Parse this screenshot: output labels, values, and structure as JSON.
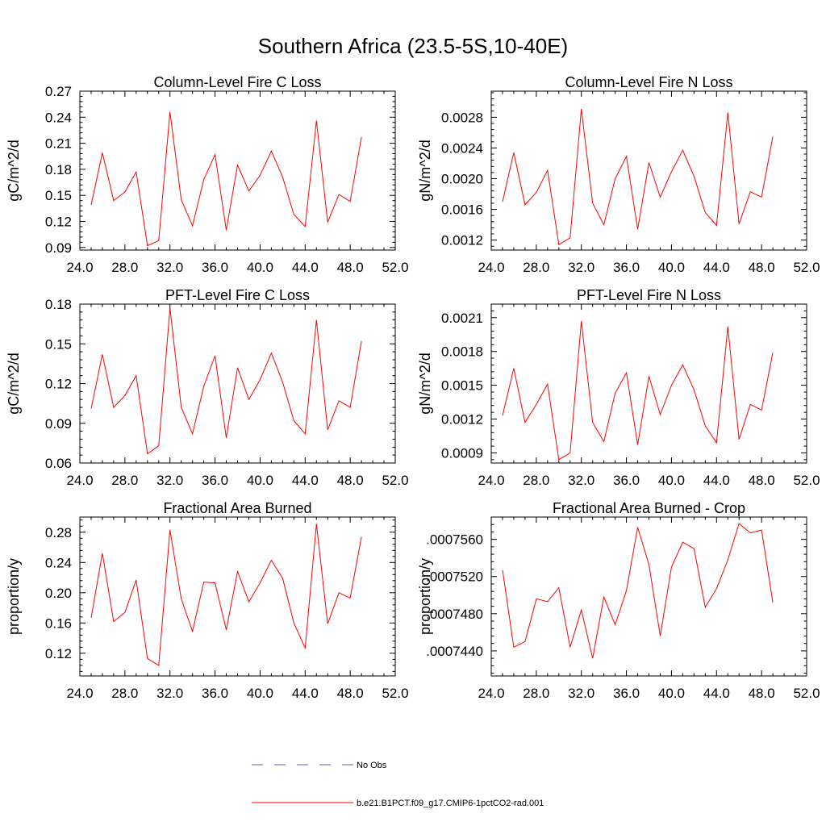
{
  "figure": {
    "title": "Southern Africa (23.5-5S,10-40E)"
  },
  "legend": [
    {
      "label": "No Obs",
      "color": "#5a5ab4",
      "dash": "dashed"
    },
    {
      "label": "b.e21.B1PCT.f09_g17.CMIP6-1pctCO2-rad.001",
      "color": "#ff0000",
      "dash": "solid"
    }
  ],
  "chart_data": [
    {
      "type": "line",
      "title": "Column-Level Fire C Loss",
      "xlabel": "",
      "ylabel": "gC/m^2/d",
      "xlim": [
        24,
        52
      ],
      "ylim": [
        0.087,
        0.27
      ],
      "xticks": [
        "24.0",
        "28.0",
        "32.0",
        "36.0",
        "40.0",
        "44.0",
        "48.0",
        "52.0"
      ],
      "yticks": [
        "0.09",
        "0.12",
        "0.15",
        "0.18",
        "0.21",
        "0.24",
        "0.27"
      ],
      "x": [
        25,
        26,
        27,
        28,
        29,
        30,
        31,
        32,
        33,
        34,
        35,
        36,
        37,
        38,
        39,
        40,
        41,
        42,
        43,
        44,
        45,
        46,
        47,
        48,
        49
      ],
      "series": [
        {
          "name": "b.e21.B1PCT.f09_g17.CMIP6-1pctCO2-rad.001",
          "color": "#ff0000",
          "values": [
            0.139,
            0.199,
            0.144,
            0.154,
            0.177,
            0.092,
            0.098,
            0.246,
            0.145,
            0.115,
            0.168,
            0.197,
            0.11,
            0.185,
            0.155,
            0.173,
            0.201,
            0.171,
            0.128,
            0.114,
            0.236,
            0.119,
            0.151,
            0.143,
            0.217
          ]
        }
      ]
    },
    {
      "type": "line",
      "title": "Column-Level Fire N Loss",
      "xlabel": "",
      "ylabel": "gN/m^2/d",
      "xlim": [
        24,
        52
      ],
      "ylim": [
        0.00107,
        0.00314
      ],
      "xticks": [
        "24.0",
        "28.0",
        "32.0",
        "36.0",
        "40.0",
        "44.0",
        "48.0",
        "52.0"
      ],
      "yticks": [
        "0.0012",
        "0.0016",
        "0.0020",
        "0.0024",
        "0.0028"
      ],
      "x": [
        25,
        26,
        27,
        28,
        29,
        30,
        31,
        32,
        33,
        34,
        35,
        36,
        37,
        38,
        39,
        40,
        41,
        42,
        43,
        44,
        45,
        46,
        47,
        48,
        49
      ],
      "series": [
        {
          "name": "b.e21.B1PCT.f09_g17.CMIP6-1pctCO2-rad.001",
          "color": "#ff0000",
          "values": [
            0.0017,
            0.00234,
            0.00166,
            0.00182,
            0.00211,
            0.00114,
            0.00123,
            0.00291,
            0.00168,
            0.0014,
            0.002,
            0.00229,
            0.00134,
            0.00221,
            0.00176,
            0.00209,
            0.00237,
            0.00203,
            0.00156,
            0.00139,
            0.00286,
            0.00141,
            0.00183,
            0.00176,
            0.00255
          ]
        }
      ]
    },
    {
      "type": "line",
      "title": "PFT-Level Fire C Loss",
      "xlabel": "",
      "ylabel": "gC/m^2/d",
      "xlim": [
        24,
        52
      ],
      "ylim": [
        0.06,
        0.18
      ],
      "xticks": [
        "24.0",
        "28.0",
        "32.0",
        "36.0",
        "40.0",
        "44.0",
        "48.0",
        "52.0"
      ],
      "yticks": [
        "0.06",
        "0.09",
        "0.12",
        "0.15",
        "0.18"
      ],
      "x": [
        25,
        26,
        27,
        28,
        29,
        30,
        31,
        32,
        33,
        34,
        35,
        36,
        37,
        38,
        39,
        40,
        41,
        42,
        43,
        44,
        45,
        46,
        47,
        48,
        49
      ],
      "series": [
        {
          "name": "b.e21.B1PCT.f09_g17.CMIP6-1pctCO2-rad.001",
          "color": "#ff0000",
          "values": [
            0.101,
            0.142,
            0.102,
            0.111,
            0.126,
            0.067,
            0.073,
            0.177,
            0.102,
            0.082,
            0.118,
            0.141,
            0.079,
            0.132,
            0.108,
            0.123,
            0.143,
            0.121,
            0.092,
            0.082,
            0.168,
            0.085,
            0.107,
            0.102,
            0.152
          ]
        }
      ]
    },
    {
      "type": "line",
      "title": "PFT-Level Fire N Loss",
      "xlabel": "",
      "ylabel": "gN/m^2/d",
      "xlim": [
        24,
        52
      ],
      "ylim": [
        0.00081,
        0.00222
      ],
      "xticks": [
        "24.0",
        "28.0",
        "32.0",
        "36.0",
        "40.0",
        "44.0",
        "48.0",
        "52.0"
      ],
      "yticks": [
        "0.0009",
        "0.0012",
        "0.0015",
        "0.0018",
        "0.0021"
      ],
      "x": [
        25,
        26,
        27,
        28,
        29,
        30,
        31,
        32,
        33,
        34,
        35,
        36,
        37,
        38,
        39,
        40,
        41,
        42,
        43,
        44,
        45,
        46,
        47,
        48,
        49
      ],
      "series": [
        {
          "name": "b.e21.B1PCT.f09_g17.CMIP6-1pctCO2-rad.001",
          "color": "#ff0000",
          "values": [
            0.00123,
            0.00165,
            0.00117,
            0.00133,
            0.00151,
            0.00084,
            0.0009,
            0.00207,
            0.00117,
            0.001,
            0.00143,
            0.00161,
            0.00097,
            0.00158,
            0.00124,
            0.0015,
            0.00168,
            0.00146,
            0.00114,
            0.00099,
            0.00202,
            0.00102,
            0.00133,
            0.00128,
            0.00179
          ]
        }
      ]
    },
    {
      "type": "line",
      "title": "Fractional Area Burned",
      "xlabel": "",
      "ylabel": "proportion/y",
      "xlim": [
        24,
        52
      ],
      "ylim": [
        0.09,
        0.3
      ],
      "xticks": [
        "24.0",
        "28.0",
        "32.0",
        "36.0",
        "40.0",
        "44.0",
        "48.0",
        "52.0"
      ],
      "yticks": [
        "0.12",
        "0.16",
        "0.20",
        "0.24",
        "0.28"
      ],
      "x": [
        25,
        26,
        27,
        28,
        29,
        30,
        31,
        32,
        33,
        34,
        35,
        36,
        37,
        38,
        39,
        40,
        41,
        42,
        43,
        44,
        45,
        46,
        47,
        48,
        49
      ],
      "series": [
        {
          "name": "b.e21.B1PCT.f09_g17.CMIP6-1pctCO2-rad.001",
          "color": "#ff0000",
          "values": [
            0.167,
            0.252,
            0.162,
            0.174,
            0.217,
            0.113,
            0.104,
            0.283,
            0.192,
            0.149,
            0.214,
            0.213,
            0.151,
            0.228,
            0.188,
            0.213,
            0.243,
            0.219,
            0.16,
            0.127,
            0.291,
            0.159,
            0.2,
            0.193,
            0.274
          ]
        }
      ]
    },
    {
      "type": "line",
      "title": "Fractional Area Burned - Crop",
      "xlabel": "",
      "ylabel": "proportion/y",
      "xlim": [
        24,
        52
      ],
      "ylim": [
        0.0007413,
        0.0007584
      ],
      "xticks": [
        "24.0",
        "28.0",
        "32.0",
        "36.0",
        "40.0",
        "44.0",
        "48.0",
        "52.0"
      ],
      "yticks": [
        ".0007440",
        ".0007480",
        ".0007520",
        ".0007560"
      ],
      "x": [
        25,
        26,
        27,
        28,
        29,
        30,
        31,
        32,
        33,
        34,
        35,
        36,
        37,
        38,
        39,
        40,
        41,
        42,
        43,
        44,
        45,
        46,
        47,
        48,
        49
      ],
      "series": [
        {
          "name": "b.e21.B1PCT.f09_g17.CMIP6-1pctCO2-rad.001",
          "color": "#ff0000",
          "values": [
            0.0007527,
            0.0007444,
            0.000745,
            0.0007496,
            0.0007493,
            0.0007508,
            0.0007444,
            0.0007484,
            0.0007432,
            0.0007498,
            0.0007468,
            0.0007505,
            0.0007573,
            0.0007533,
            0.0007456,
            0.000753,
            0.0007557,
            0.000755,
            0.0007487,
            0.0007507,
            0.0007538,
            0.0007577,
            0.0007567,
            0.000757,
            0.0007492
          ]
        }
      ]
    }
  ]
}
